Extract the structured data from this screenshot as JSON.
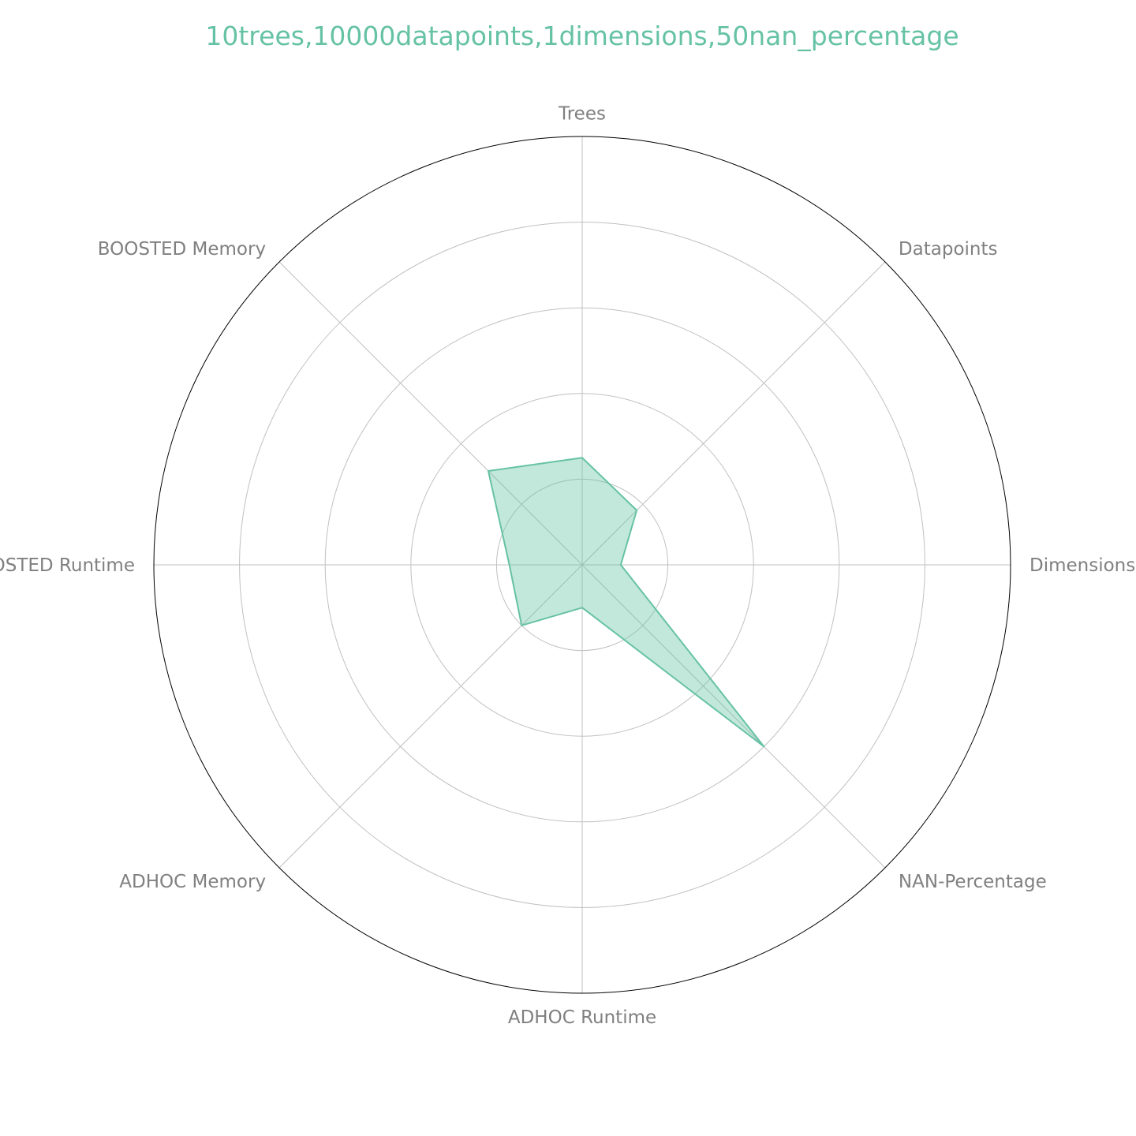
{
  "chart_data": {
    "type": "radar",
    "title": "10trees,10000datapoints,1dimensions,50nan_percentage",
    "categories": [
      "Trees",
      "Datapoints",
      "Dimensions",
      "NAN-Percentage",
      "ADHOC Runtime",
      "ADHOC Memory",
      "BOOSTED Runtime",
      "BOOSTED Memory"
    ],
    "series": [
      {
        "values": [
          0.25,
          0.18,
          0.09,
          0.6,
          0.1,
          0.2,
          0.17,
          0.31
        ]
      }
    ],
    "rlim": [
      0,
      1
    ],
    "rgrid": [
      0.2,
      0.4,
      0.6,
      0.8
    ],
    "grid": true,
    "legend": "none"
  },
  "colors": {
    "series": "#66c2a5",
    "title": "#66c2a5",
    "grid": "#c0c0c0",
    "spine": "#000000",
    "label": "#808080"
  }
}
